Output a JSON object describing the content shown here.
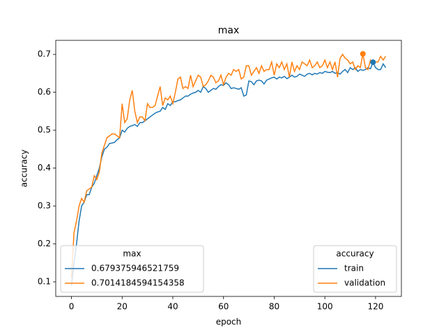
{
  "chart_data": {
    "type": "line",
    "title": "max",
    "x_label": "epoch",
    "y_label": "accuracy",
    "x": [
      0,
      1,
      2,
      3,
      4,
      5,
      6,
      7,
      8,
      9,
      10,
      11,
      12,
      13,
      14,
      15,
      16,
      17,
      18,
      19,
      20,
      21,
      22,
      23,
      24,
      25,
      26,
      27,
      28,
      29,
      30,
      31,
      32,
      33,
      34,
      35,
      36,
      37,
      38,
      39,
      40,
      41,
      42,
      43,
      44,
      45,
      46,
      47,
      48,
      49,
      50,
      51,
      52,
      53,
      54,
      55,
      56,
      57,
      58,
      59,
      60,
      61,
      62,
      63,
      64,
      65,
      66,
      67,
      68,
      69,
      70,
      71,
      72,
      73,
      74,
      75,
      76,
      77,
      78,
      79,
      80,
      81,
      82,
      83,
      84,
      85,
      86,
      87,
      88,
      89,
      90,
      91,
      92,
      93,
      94,
      95,
      96,
      97,
      98,
      99,
      100,
      101,
      102,
      103,
      104,
      105,
      106,
      107,
      108,
      109,
      110,
      111,
      112,
      113,
      114,
      115,
      116,
      117,
      118,
      119,
      120,
      121,
      122,
      123,
      124
    ],
    "series": [
      {
        "name": "train",
        "color": "#1f77b4",
        "values": [
          0.09,
          0.15,
          0.2,
          0.26,
          0.3,
          0.31,
          0.33,
          0.33,
          0.35,
          0.36,
          0.38,
          0.4,
          0.43,
          0.45,
          0.455,
          0.465,
          0.466,
          0.468,
          0.475,
          0.48,
          0.5,
          0.495,
          0.505,
          0.51,
          0.512,
          0.515,
          0.51,
          0.52,
          0.52,
          0.525,
          0.53,
          0.535,
          0.54,
          0.545,
          0.548,
          0.55,
          0.56,
          0.555,
          0.57,
          0.565,
          0.575,
          0.575,
          0.578,
          0.58,
          0.585,
          0.59,
          0.59,
          0.595,
          0.598,
          0.6,
          0.605,
          0.6,
          0.615,
          0.61,
          0.6,
          0.605,
          0.61,
          0.608,
          0.615,
          0.62,
          0.618,
          0.625,
          0.62,
          0.61,
          0.612,
          0.61,
          0.608,
          0.612,
          0.59,
          0.593,
          0.63,
          0.628,
          0.62,
          0.63,
          0.632,
          0.63,
          0.622,
          0.632,
          0.635,
          0.638,
          0.64,
          0.635,
          0.64,
          0.638,
          0.642,
          0.636,
          0.64,
          0.645,
          0.64,
          0.642,
          0.648,
          0.645,
          0.642,
          0.648,
          0.65,
          0.646,
          0.65,
          0.648,
          0.652,
          0.65,
          0.655,
          0.653,
          0.652,
          0.655,
          0.65,
          0.652,
          0.648,
          0.655,
          0.66,
          0.652,
          0.665,
          0.66,
          0.665,
          0.655,
          0.66,
          0.658,
          0.66,
          0.665,
          0.662,
          0.679375946521759,
          0.665,
          0.66,
          0.66,
          0.675,
          0.665
        ]
      },
      {
        "name": "validation",
        "color": "#ff7f0e",
        "values": [
          0.11,
          0.23,
          0.26,
          0.3,
          0.32,
          0.31,
          0.34,
          0.345,
          0.35,
          0.38,
          0.37,
          0.39,
          0.44,
          0.46,
          0.48,
          0.485,
          0.49,
          0.49,
          0.485,
          0.48,
          0.57,
          0.52,
          0.53,
          0.58,
          0.605,
          0.55,
          0.52,
          0.535,
          0.535,
          0.525,
          0.57,
          0.56,
          0.56,
          0.565,
          0.59,
          0.615,
          0.565,
          0.585,
          0.58,
          0.59,
          0.57,
          0.6,
          0.635,
          0.64,
          0.61,
          0.615,
          0.61,
          0.645,
          0.615,
          0.63,
          0.645,
          0.64,
          0.615,
          0.62,
          0.63,
          0.645,
          0.64,
          0.625,
          0.63,
          0.645,
          0.62,
          0.64,
          0.65,
          0.645,
          0.66,
          0.655,
          0.66,
          0.635,
          0.64,
          0.67,
          0.67,
          0.645,
          0.655,
          0.665,
          0.65,
          0.67,
          0.655,
          0.66,
          0.66,
          0.68,
          0.645,
          0.675,
          0.665,
          0.68,
          0.66,
          0.675,
          0.64,
          0.68,
          0.655,
          0.67,
          0.66,
          0.68,
          0.675,
          0.67,
          0.685,
          0.665,
          0.67,
          0.68,
          0.665,
          0.67,
          0.685,
          0.665,
          0.68,
          0.66,
          0.68,
          0.64,
          0.69,
          0.7,
          0.69,
          0.685,
          0.675,
          0.68,
          0.66,
          0.67,
          0.665,
          0.7014184594154358,
          0.665,
          0.66,
          0.685,
          0.675,
          0.68,
          0.68,
          0.695,
          0.685,
          0.695
        ]
      }
    ],
    "legend_title": "accuracy",
    "legend_position": "lower right",
    "max_legend": {
      "title": "max",
      "position": "lower left",
      "entries": [
        "0.679375946521759",
        "0.7014184594154358"
      ]
    },
    "xlim": [
      -6.2,
      130.2
    ],
    "xticks": [
      0,
      20,
      40,
      60,
      80,
      100,
      120
    ],
    "ylim": [
      0.0615,
      0.737
    ],
    "yticks": [
      0.1,
      0.2,
      0.3,
      0.4,
      0.5,
      0.6,
      0.7
    ],
    "grid": false
  }
}
